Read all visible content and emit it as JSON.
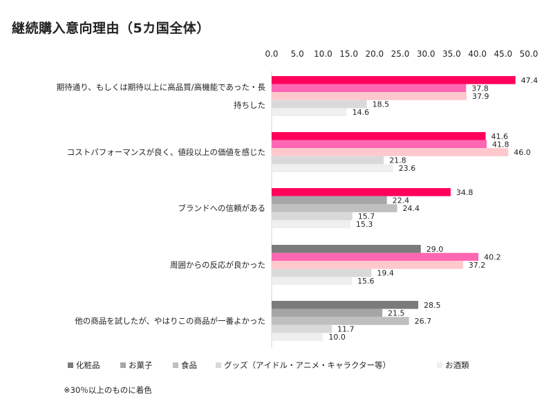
{
  "title": "継続購入意向理由（5カ国全体）",
  "footnote": "※30％以上のものに着色",
  "chart_data": {
    "type": "bar",
    "orientation": "horizontal",
    "title": "継続購入意向理由（5カ国全体）",
    "xlim": [
      0,
      50
    ],
    "x_ticks": [
      "0.0",
      "5.0",
      "10.0",
      "15.0",
      "20.0",
      "25.0",
      "30.0",
      "35.0",
      "40.0",
      "45.0",
      "50.0"
    ],
    "x_axis_position": "top",
    "grid": false,
    "legend_position": "bottom",
    "highlight_threshold": 30,
    "categories": [
      [
        "期待通り、もしくは期待以上に高品質/高機能であった・長",
        "持ちした"
      ],
      [
        "コストパフォーマンスが良く、値段以上の価値を感じた"
      ],
      [
        "ブランドへの信頼がある"
      ],
      [
        "周囲からの反応が良かった"
      ],
      [
        "他の商品を試したが、やはりこの商品が一番よかった"
      ]
    ],
    "series": [
      {
        "name": "化粧品",
        "values": [
          47.4,
          41.6,
          34.8,
          29.0,
          28.5
        ],
        "color": "#ff005a",
        "base_color": "#7b7b7b"
      },
      {
        "name": "お菓子",
        "values": [
          37.8,
          41.8,
          22.4,
          40.2,
          21.5
        ],
        "color": "#ff66b3",
        "base_color": "#a6a6a6"
      },
      {
        "name": "食品",
        "values": [
          37.9,
          46.0,
          24.4,
          37.2,
          26.7
        ],
        "color": "#ffc8cd",
        "base_color": "#bfbfbf"
      },
      {
        "name": "グッズ（アイドル・アニメ・キャラクター等）",
        "values": [
          18.5,
          21.8,
          15.7,
          19.4,
          11.7
        ],
        "color": "#d9d9d9",
        "base_color": "#d9d9d9"
      },
      {
        "name": "お酒類",
        "values": [
          14.6,
          23.6,
          15.3,
          15.6,
          10.0
        ],
        "color": "#efefef",
        "base_color": "#efefef"
      }
    ]
  }
}
